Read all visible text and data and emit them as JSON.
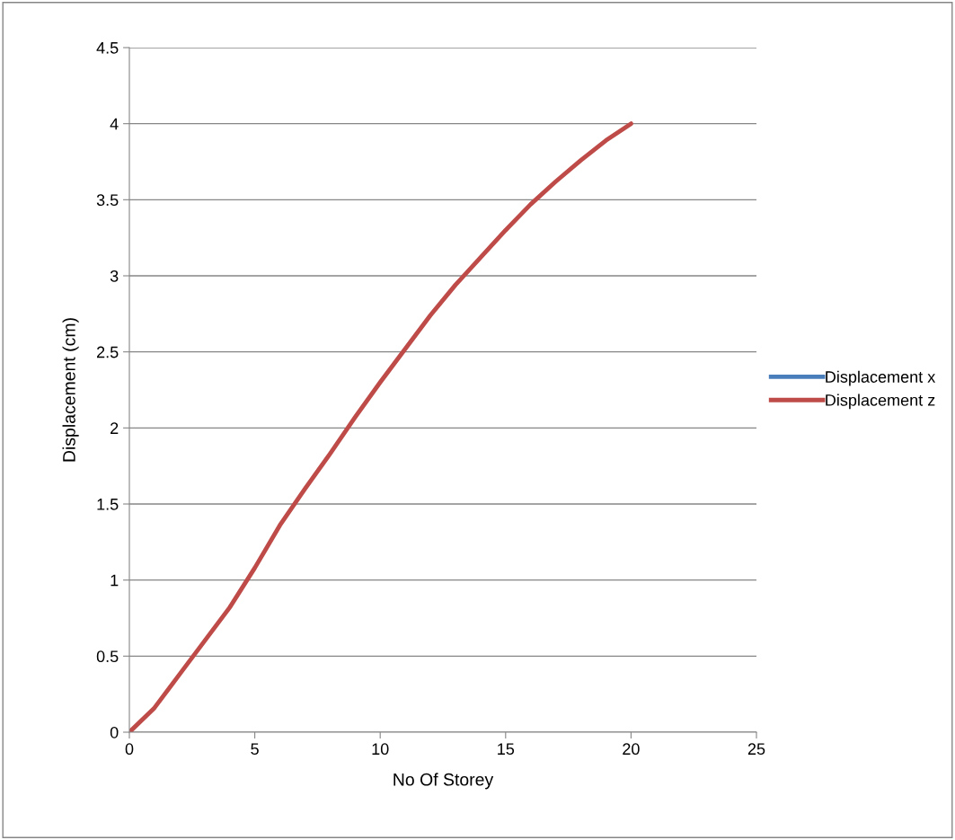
{
  "chart_data": {
    "type": "line",
    "xlabel": "No Of Storey",
    "ylabel": "Displacement (cm)",
    "x": [
      0,
      1,
      2,
      3,
      4,
      5,
      6,
      7,
      8,
      9,
      10,
      11,
      12,
      13,
      14,
      15,
      16,
      17,
      18,
      19,
      20
    ],
    "series": [
      {
        "name": "Displacement x",
        "color": "#4a7ebb",
        "values": [
          null,
          null,
          null,
          null,
          null,
          null,
          null,
          null,
          null,
          null,
          null,
          null,
          null,
          null,
          null,
          null,
          null,
          null,
          null,
          null,
          null
        ]
      },
      {
        "name": "Displacement z",
        "color": "#be4b48",
        "values": [
          0,
          0.16,
          0.38,
          0.6,
          0.82,
          1.08,
          1.36,
          1.6,
          1.83,
          2.07,
          2.3,
          2.52,
          2.74,
          2.94,
          3.12,
          3.3,
          3.47,
          3.62,
          3.76,
          3.89,
          4.0
        ]
      }
    ],
    "xlim": [
      0,
      25
    ],
    "xticks": [
      0,
      5,
      10,
      15,
      20,
      25
    ],
    "ylim": [
      0,
      4.5
    ],
    "yticks": [
      0,
      0.5,
      1,
      1.5,
      2,
      2.5,
      3,
      3.5,
      4,
      4.5
    ],
    "grid": "y",
    "legend": "right",
    "marker": "none",
    "line_style": "solid"
  }
}
